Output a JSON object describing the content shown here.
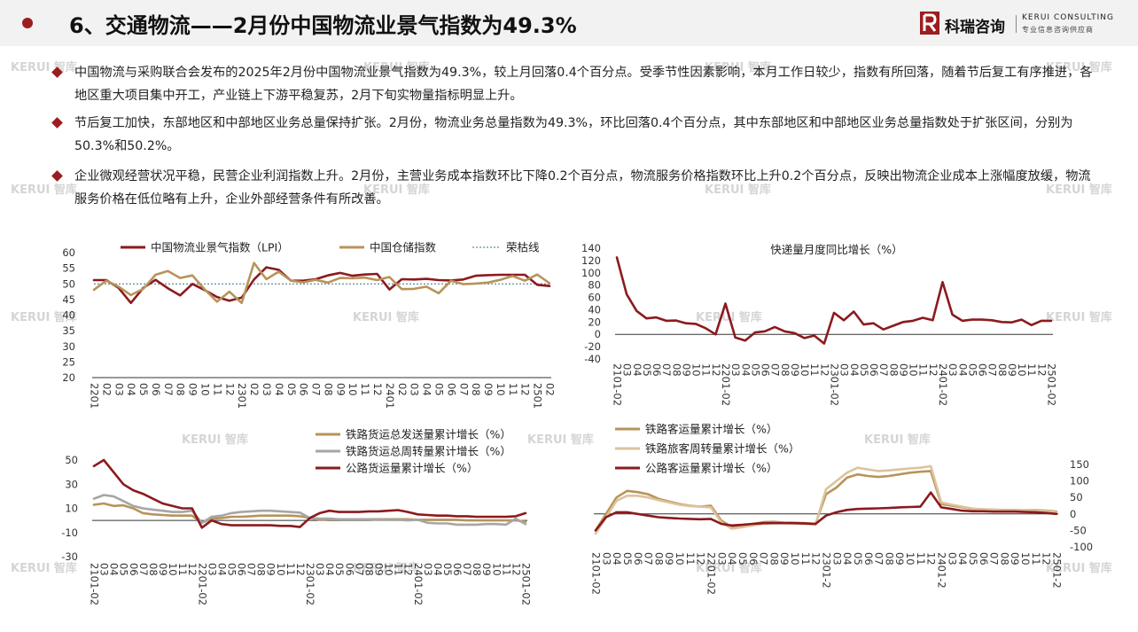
{
  "header": {
    "title": "6、交通物流——2月份中国物流业景气指数为49.3%",
    "logo_cn": "科瑞咨询",
    "logo_en1": "KERUI CONSULTING",
    "logo_en2": "专业信息咨询供应商"
  },
  "watermark": "KERUI 智库",
  "bullets": [
    "中国物流与采购联合会发布的2025年2月份中国物流业景气指数为49.3%，较上月回落0.4个百分点。受季节性因素影响，本月工作日较少，指数有所回落，随着节后复工有序推进，各地区重大项目集中开工，产业链上下游平稳复苏，2月下旬实物量指标明显上升。",
    "节后复工加快，东部地区和中部地区业务总量保持扩张。2月份，物流业务总量指数为49.3%，环比回落0.4个百分点，其中东部地区和中部地区业务总量指数处于扩张区间，分别为50.3%和50.2%。",
    "企业微观经营状况平稳，民营企业利润指数上升。2月份，主营业务成本指数环比下降0.2个百分点，物流服务价格指数环比上升0.2个百分点，反映出物流企业成本上涨幅度放缓，物流服务价格在低位略有上升，企业外部经营条件有所改善。"
  ],
  "colors": {
    "brand": "#9c1c1f",
    "dark_red": "#8b1a1e",
    "gold": "#b8935a",
    "gray": "#a6a6a6",
    "light_gold": "#dcc39c",
    "axis": "#333333"
  },
  "chart_data": [
    {
      "type": "line",
      "title": "",
      "legend_position": "top",
      "ylim": [
        20,
        60
      ],
      "yticks": [
        20,
        25,
        30,
        35,
        40,
        45,
        50,
        55,
        60
      ],
      "x_labels": [
        "2201",
        "02",
        "03",
        "04",
        "05",
        "06",
        "07",
        "08",
        "09",
        "10",
        "11",
        "12",
        "2301",
        "02",
        "03",
        "04",
        "05",
        "06",
        "07",
        "08",
        "09",
        "10",
        "11",
        "12",
        "2401",
        "02",
        "03",
        "04",
        "05",
        "06",
        "07",
        "08",
        "09",
        "10",
        "11",
        "12",
        "2501",
        "02"
      ],
      "reference_line": {
        "name": "荣枯线",
        "value": 50
      },
      "series": [
        {
          "name": "中国物流业景气指数（LPI）",
          "color": "#8b1a1e",
          "values": [
            51.2,
            51.2,
            48.7,
            43.9,
            48.7,
            51.3,
            48.6,
            46.3,
            50.0,
            48.0,
            45.8,
            44.6,
            45.6,
            51.4,
            55.3,
            54.5,
            51.0,
            51.0,
            51.5,
            52.7,
            53.5,
            52.6,
            53.0,
            53.2,
            48.2,
            51.5,
            51.4,
            51.6,
            51.2,
            51.1,
            51.4,
            52.6,
            52.8,
            52.9,
            52.9,
            52.9,
            49.7,
            49.3
          ]
        },
        {
          "name": "中国仓储指数",
          "color": "#b8935a",
          "values": [
            48.1,
            51.0,
            49.1,
            46.4,
            48.4,
            52.9,
            54.1,
            51.9,
            52.7,
            48.2,
            44.3,
            47.5,
            43.9,
            56.7,
            51.5,
            53.9,
            51.0,
            50.5,
            51.3,
            50.4,
            51.9,
            51.8,
            52.0,
            51.2,
            52.2,
            48.3,
            48.4,
            49.1,
            47.0,
            51.0,
            49.9,
            50.1,
            50.4,
            51.3,
            52.5,
            51.0,
            53.0,
            50.2
          ]
        }
      ]
    },
    {
      "type": "line",
      "title": "快递量月度同比增长（%）",
      "ylim": [
        -40,
        140
      ],
      "yticks": [
        -40,
        -20,
        0,
        20,
        40,
        60,
        80,
        100,
        120,
        140
      ],
      "x_labels": [
        "2101-02",
        "03",
        "04",
        "05",
        "06",
        "07",
        "08",
        "09",
        "10",
        "11",
        "12",
        "2201-02",
        "03",
        "04",
        "05",
        "06",
        "07",
        "08",
        "09",
        "10",
        "11",
        "12",
        "2301-02",
        "03",
        "04",
        "05",
        "06",
        "07",
        "08",
        "09",
        "10",
        "11",
        "12",
        "2401-02",
        "03",
        "04",
        "05",
        "06",
        "07",
        "08",
        "09",
        "10",
        "11",
        "12",
        "2501-02"
      ],
      "series": [
        {
          "name": "快递量月度同比增长（%）",
          "color": "#8b1a1e",
          "values": [
            125.0,
            65.0,
            38.0,
            26.0,
            27.5,
            22.0,
            22.5,
            18.0,
            17.0,
            10.0,
            0.0,
            50.0,
            -5.0,
            -10.0,
            3.0,
            5.0,
            12.0,
            5.0,
            2.0,
            -6.0,
            -2.0,
            -15.0,
            35.0,
            23.0,
            37.0,
            16.0,
            18.0,
            8.0,
            14.0,
            20.0,
            22.0,
            27.0,
            23.0,
            85.0,
            32.0,
            22.0,
            24.0,
            24.0,
            23.0,
            20.0,
            19.5,
            24.0,
            15.0,
            22.0,
            22.0
          ]
        }
      ]
    },
    {
      "type": "line",
      "title": "",
      "legend_position": "top-right",
      "ylim": [
        -30,
        50
      ],
      "yticks": [
        -30,
        -10,
        10,
        30,
        50
      ],
      "x_labels": [
        "2101-02",
        "03",
        "04",
        "05",
        "06",
        "07",
        "08",
        "09",
        "10",
        "11",
        "12",
        "2201-02",
        "03",
        "04",
        "05",
        "06",
        "07",
        "08",
        "09",
        "10",
        "11",
        "12",
        "2301-02",
        "03",
        "04",
        "05",
        "06",
        "07",
        "08",
        "09",
        "10",
        "11",
        "12",
        "2401-02",
        "03",
        "04",
        "05",
        "06",
        "07",
        "08",
        "09",
        "10",
        "11",
        "12",
        "2501-02"
      ],
      "series": [
        {
          "name": "铁路货运总发送量累计增长（%）",
          "color": "#b8935a",
          "values": [
            13.0,
            14.0,
            12.0,
            12.5,
            10.0,
            6.0,
            5.0,
            4.5,
            4.0,
            4.0,
            4.0,
            -2.0,
            1.5,
            2.0,
            3.0,
            3.0,
            3.5,
            4.0,
            4.0,
            4.0,
            4.0,
            3.5,
            2.0,
            0.5,
            1.0,
            1.0,
            1.0,
            1.0,
            1.0,
            1.0,
            1.0,
            1.0,
            1.0,
            0.5,
            0.5,
            0.5,
            0.5,
            0.5,
            0.0,
            0.0,
            0.0,
            0.0,
            0.0,
            0.0,
            -1.0
          ]
        },
        {
          "name": "铁路货运总周转量累计增长（%）",
          "color": "#a6a6a6",
          "values": [
            18.0,
            21.0,
            20.0,
            16.0,
            12.0,
            10.0,
            9.0,
            8.0,
            7.0,
            7.0,
            8.0,
            -2.0,
            3.0,
            4.0,
            6.0,
            7.0,
            7.5,
            8.0,
            8.0,
            7.5,
            7.0,
            6.5,
            2.0,
            1.5,
            1.5,
            1.0,
            1.0,
            1.0,
            1.0,
            0.5,
            0.5,
            0.5,
            0.0,
            0.5,
            -2.0,
            -2.5,
            -2.5,
            -3.5,
            -3.5,
            -3.5,
            -3.0,
            -3.0,
            -3.5,
            1.5,
            -3.0
          ]
        },
        {
          "name": "公路货运量累计增长（%）",
          "color": "#8b1a1e",
          "values": [
            45.0,
            55.0,
            40.0,
            30.0,
            25.0,
            22.0,
            18.0,
            14.0,
            12.0,
            10.0,
            10.0,
            -6.0,
            0.0,
            -3.0,
            -4.0,
            -4.0,
            -4.0,
            -4.0,
            -4.0,
            -4.5,
            -4.5,
            -5.5,
            2.0,
            6.0,
            8.0,
            7.0,
            7.0,
            7.0,
            7.5,
            7.5,
            8.0,
            8.5,
            7.0,
            5.0,
            4.5,
            4.0,
            4.0,
            3.5,
            3.5,
            3.0,
            3.0,
            3.0,
            3.0,
            3.5,
            6.0
          ]
        }
      ]
    },
    {
      "type": "line",
      "title": "",
      "legend_position": "top-left",
      "ylim": [
        -100,
        150
      ],
      "yticks": [
        -100,
        -50,
        0,
        50,
        100,
        150
      ],
      "x_labels": [
        "2101-02",
        "03",
        "04",
        "05",
        "06",
        "07",
        "08",
        "09",
        "10",
        "11",
        "12",
        "2201-02",
        "03",
        "04",
        "05",
        "06",
        "07",
        "08",
        "09",
        "10",
        "11",
        "12",
        "2301-2",
        "03",
        "04",
        "05",
        "06",
        "07",
        "08",
        "09",
        "10",
        "11",
        "12",
        "2401-2",
        "03",
        "04",
        "05",
        "06",
        "07",
        "08",
        "09",
        "10",
        "11",
        "12",
        "2501-2"
      ],
      "series": [
        {
          "name": "铁路客运量累计增长（%）",
          "color": "#b8935a",
          "values": [
            -50.0,
            0.0,
            50.0,
            70.0,
            66.0,
            60.0,
            46.0,
            38.0,
            30.0,
            25.0,
            22.0,
            25.0,
            -20.0,
            -40.0,
            -38.0,
            -30.0,
            -25.0,
            -24.0,
            -26.0,
            -27.0,
            -28.0,
            -30.0,
            60.0,
            80.0,
            110.0,
            120.0,
            115.0,
            112.0,
            115.0,
            120.0,
            125.0,
            128.0,
            130.0,
            30.0,
            25.0,
            20.0,
            15.0,
            14.0,
            13.0,
            12.0,
            12.0,
            11.0,
            11.0,
            10.0,
            7.0
          ]
        },
        {
          "name": "铁路旅客周转量累计增长（%）",
          "color": "#dcc39c",
          "values": [
            -60.0,
            -10.0,
            40.0,
            55.0,
            55.0,
            50.0,
            42.0,
            35.0,
            28.0,
            24.0,
            22.0,
            20.0,
            -25.0,
            -45.0,
            -40.0,
            -35.0,
            -30.0,
            -28.0,
            -28.0,
            -29.0,
            -30.0,
            -33.0,
            75.0,
            100.0,
            125.0,
            140.0,
            135.0,
            130.0,
            132.0,
            135.0,
            138.0,
            140.0,
            145.0,
            35.0,
            28.0,
            22.0,
            16.0,
            14.0,
            12.0,
            11.0,
            11.0,
            10.0,
            9.0,
            9.0,
            5.0
          ]
        },
        {
          "name": "公路客运量累计增长（%）",
          "color": "#8b1a1e",
          "values": [
            -50.0,
            -10.0,
            5.0,
            5.0,
            0.0,
            -5.0,
            -10.0,
            -12.0,
            -14.0,
            -15.0,
            -16.0,
            -15.0,
            -30.0,
            -35.0,
            -33.0,
            -30.0,
            -28.0,
            -28.0,
            -28.0,
            -28.0,
            -29.0,
            -30.0,
            -5.0,
            5.0,
            12.0,
            15.0,
            16.0,
            17.0,
            18.0,
            20.0,
            21.0,
            22.0,
            65.0,
            20.0,
            15.0,
            10.0,
            8.0,
            8.0,
            7.0,
            7.0,
            7.0,
            6.0,
            5.0,
            3.0,
            0.0
          ]
        }
      ]
    }
  ]
}
